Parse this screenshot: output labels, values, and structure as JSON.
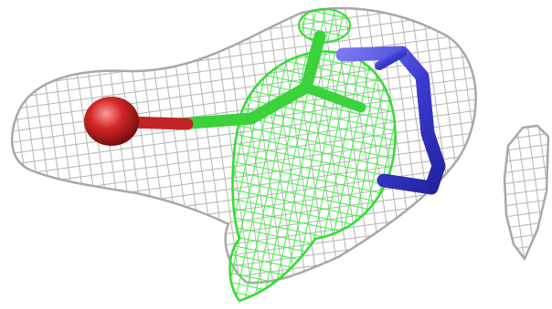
{
  "scene": {
    "background": "#ffffff",
    "colors": {
      "density_mesh": "#b4b4b4",
      "difference_mesh": "#3cf03c",
      "oxygen": "#d22828",
      "carbon": "#3cd23c",
      "nitrogen": "#3c3cd2"
    },
    "objects": [
      "electron-density-mesh",
      "difference-density-mesh",
      "oxygen-atom",
      "carbon-bonds",
      "nitrogen-ring",
      "partial-density-mesh"
    ]
  }
}
